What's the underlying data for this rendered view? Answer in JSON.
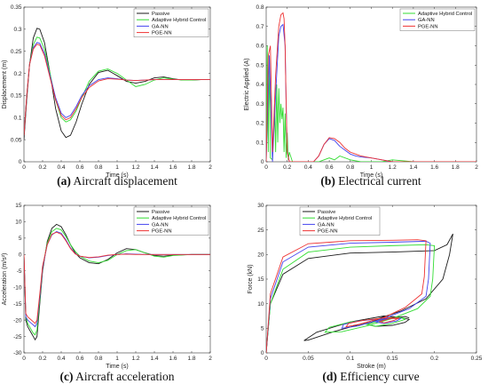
{
  "colors": {
    "Passive": "#1a1a1a",
    "Adaptive Hybrid Control": "#33dd33",
    "GA-NN": "#4444ee",
    "PGE-NN": "#ee3333"
  },
  "chart_data": [
    {
      "id": "a",
      "type": "line",
      "caption_label": "(a)",
      "caption_text": " Aircraft displacement",
      "xlabel": "Time (s)",
      "ylabel": "Displacement (m)",
      "xlim": [
        0,
        2
      ],
      "ylim": [
        0,
        0.35
      ],
      "xticks": [
        "0",
        "0.2",
        "0.4",
        "0.6",
        "0.8",
        "1",
        "1.2",
        "1.4",
        "1.6",
        "1.8",
        "2"
      ],
      "yticks": [
        "0",
        "0.05",
        "0.1",
        "0.15",
        "0.2",
        "0.25",
        "0.3",
        "0.35"
      ],
      "legend": "top-right",
      "series": [
        {
          "name": "Passive",
          "x": [
            0,
            0.03,
            0.06,
            0.1,
            0.14,
            0.17,
            0.22,
            0.28,
            0.34,
            0.4,
            0.45,
            0.5,
            0.56,
            0.62,
            0.7,
            0.8,
            0.9,
            1.0,
            1.1,
            1.2,
            1.3,
            1.4,
            1.5,
            1.6,
            1.7,
            1.8,
            1.9,
            2.0
          ],
          "y": [
            0.05,
            0.14,
            0.22,
            0.28,
            0.302,
            0.3,
            0.27,
            0.2,
            0.12,
            0.07,
            0.055,
            0.06,
            0.09,
            0.13,
            0.175,
            0.202,
            0.207,
            0.195,
            0.182,
            0.178,
            0.182,
            0.19,
            0.192,
            0.188,
            0.185,
            0.185,
            0.186,
            0.186
          ]
        },
        {
          "name": "Adaptive Hybrid Control",
          "x": [
            0,
            0.03,
            0.06,
            0.1,
            0.14,
            0.17,
            0.22,
            0.28,
            0.34,
            0.4,
            0.45,
            0.5,
            0.56,
            0.62,
            0.7,
            0.8,
            0.9,
            1.0,
            1.1,
            1.2,
            1.3,
            1.4,
            1.5,
            1.6,
            1.7,
            1.8,
            1.9,
            2.0
          ],
          "y": [
            0.06,
            0.15,
            0.22,
            0.265,
            0.282,
            0.28,
            0.255,
            0.2,
            0.14,
            0.1,
            0.09,
            0.095,
            0.115,
            0.145,
            0.182,
            0.205,
            0.21,
            0.2,
            0.185,
            0.17,
            0.175,
            0.185,
            0.19,
            0.187,
            0.185,
            0.185,
            0.186,
            0.186
          ]
        },
        {
          "name": "GA-NN",
          "x": [
            0,
            0.03,
            0.06,
            0.1,
            0.14,
            0.17,
            0.22,
            0.28,
            0.34,
            0.4,
            0.45,
            0.5,
            0.56,
            0.62,
            0.7,
            0.8,
            0.9,
            1.0,
            1.1,
            1.2,
            1.3,
            1.4,
            1.5,
            1.6,
            1.7,
            1.8,
            1.9,
            2.0
          ],
          "y": [
            0.06,
            0.15,
            0.22,
            0.258,
            0.27,
            0.268,
            0.245,
            0.195,
            0.145,
            0.11,
            0.1,
            0.105,
            0.125,
            0.15,
            0.172,
            0.186,
            0.19,
            0.188,
            0.185,
            0.184,
            0.185,
            0.186,
            0.186,
            0.186,
            0.186,
            0.186,
            0.186,
            0.186
          ]
        },
        {
          "name": "PGE-NN",
          "x": [
            0,
            0.03,
            0.06,
            0.1,
            0.14,
            0.17,
            0.22,
            0.28,
            0.34,
            0.4,
            0.45,
            0.5,
            0.56,
            0.62,
            0.7,
            0.8,
            0.9,
            1.0,
            1.1,
            1.2,
            1.3,
            1.4,
            1.5,
            1.6,
            1.7,
            1.8,
            1.9,
            2.0
          ],
          "y": [
            0.06,
            0.15,
            0.22,
            0.255,
            0.266,
            0.264,
            0.24,
            0.19,
            0.14,
            0.105,
            0.095,
            0.1,
            0.12,
            0.145,
            0.168,
            0.183,
            0.188,
            0.187,
            0.185,
            0.184,
            0.185,
            0.186,
            0.186,
            0.186,
            0.186,
            0.186,
            0.186,
            0.186
          ]
        }
      ]
    },
    {
      "id": "b",
      "type": "line",
      "caption_label": "(b)",
      "caption_text": " Electrical current",
      "xlabel": "Time (s)",
      "ylabel": "Electric Applied (A)",
      "xlim": [
        0,
        2
      ],
      "ylim": [
        0,
        0.8
      ],
      "xticks": [
        "0",
        "0.2",
        "0.4",
        "0.6",
        "0.8",
        "1",
        "1.2",
        "1.4",
        "1.6",
        "1.8",
        "2"
      ],
      "yticks": [
        "0",
        "0.1",
        "0.2",
        "0.3",
        "0.4",
        "0.5",
        "0.6",
        "0.7",
        "0.8"
      ],
      "legend": "top-right",
      "series": [
        {
          "name": "Adaptive Hybrid Control",
          "x": [
            0,
            0.01,
            0.02,
            0.03,
            0.04,
            0.06,
            0.08,
            0.09,
            0.1,
            0.11,
            0.12,
            0.13,
            0.14,
            0.15,
            0.16,
            0.17,
            0.18,
            0.19,
            0.2,
            0.21,
            0.22,
            0.25,
            0.3,
            0.4,
            0.5,
            0.55,
            0.6,
            0.65,
            0.7,
            0.8,
            0.9,
            1.0,
            1.1,
            1.2,
            1.4,
            1.6,
            1.8,
            2.0
          ],
          "y": [
            0.02,
            0.6,
            0.05,
            0.55,
            0.02,
            0.01,
            0.3,
            0.05,
            0.4,
            0.1,
            0.38,
            0.2,
            0.3,
            0.22,
            0.28,
            0.05,
            0.25,
            0.02,
            0.15,
            0.01,
            0.05,
            0.0,
            0.0,
            0.0,
            0.0,
            0.01,
            0.02,
            0.01,
            0.03,
            0.01,
            0.0,
            0.0,
            0.0,
            0.01,
            0.0,
            0.0,
            0.0,
            0.0
          ]
        },
        {
          "name": "GA-NN",
          "x": [
            0,
            0.03,
            0.06,
            0.09,
            0.12,
            0.14,
            0.16,
            0.18,
            0.19,
            0.2,
            0.22,
            0.3,
            0.45,
            0.5,
            0.55,
            0.6,
            0.65,
            0.7,
            0.75,
            0.8,
            0.85,
            0.9,
            1.0,
            1.1,
            1.2,
            1.4,
            1.6,
            1.8,
            2.0
          ],
          "y": [
            0,
            0.55,
            0.0,
            0.35,
            0.65,
            0.7,
            0.71,
            0.6,
            0.3,
            0.05,
            0.0,
            0.0,
            0.0,
            0.03,
            0.09,
            0.12,
            0.11,
            0.08,
            0.06,
            0.04,
            0.03,
            0.025,
            0.02,
            0.01,
            0.0,
            0.0,
            0.0,
            0.0,
            0.0
          ]
        },
        {
          "name": "PGE-NN",
          "x": [
            0,
            0.02,
            0.04,
            0.06,
            0.09,
            0.12,
            0.14,
            0.16,
            0.17,
            0.18,
            0.19,
            0.2,
            0.22,
            0.3,
            0.45,
            0.5,
            0.55,
            0.6,
            0.65,
            0.7,
            0.75,
            0.8,
            0.85,
            0.9,
            1.0,
            1.1,
            1.2,
            1.4,
            1.6,
            1.8,
            2.0
          ],
          "y": [
            0,
            0.55,
            0.6,
            0.05,
            0.45,
            0.7,
            0.76,
            0.77,
            0.74,
            0.6,
            0.3,
            0.05,
            0.0,
            0.0,
            0.0,
            0.03,
            0.09,
            0.125,
            0.12,
            0.1,
            0.07,
            0.05,
            0.04,
            0.03,
            0.02,
            0.01,
            0.0,
            0.0,
            0.0,
            0.0,
            0.0
          ]
        }
      ]
    },
    {
      "id": "c",
      "type": "line",
      "caption_label": "(c)",
      "caption_text": " Aircraft acceleration",
      "xlabel": "Time (s)",
      "ylabel": "Acceleration (m/s²)",
      "xlim": [
        0,
        2
      ],
      "ylim": [
        -30,
        15
      ],
      "xticks": [
        "0",
        "0.2",
        "0.4",
        "0.6",
        "0.8",
        "1",
        "1.2",
        "1.4",
        "1.6",
        "1.8",
        "2"
      ],
      "yticks": [
        "-30",
        "-25",
        "-20",
        "-15",
        "-10",
        "-5",
        "0",
        "5",
        "10",
        "15"
      ],
      "legend": "top-right",
      "series": [
        {
          "name": "Passive",
          "x": [
            0,
            0.02,
            0.04,
            0.06,
            0.08,
            0.1,
            0.12,
            0.14,
            0.17,
            0.2,
            0.25,
            0.3,
            0.35,
            0.4,
            0.45,
            0.5,
            0.55,
            0.6,
            0.7,
            0.8,
            0.9,
            1.0,
            1.1,
            1.2,
            1.3,
            1.4,
            1.5,
            1.6,
            1.8,
            2.0
          ],
          "y": [
            0,
            -20,
            -22,
            -23,
            -24,
            -25,
            -26,
            -25,
            -15,
            -5,
            4,
            8,
            9.2,
            8.5,
            6,
            3,
            0.5,
            -1,
            -2.5,
            -2.8,
            -1.5,
            0.5,
            1.8,
            1.5,
            0.5,
            -0.3,
            -0.5,
            -0.2,
            0,
            0
          ]
        },
        {
          "name": "Adaptive Hybrid Control",
          "x": [
            0,
            0.02,
            0.04,
            0.06,
            0.08,
            0.1,
            0.12,
            0.14,
            0.17,
            0.2,
            0.25,
            0.3,
            0.35,
            0.4,
            0.45,
            0.5,
            0.55,
            0.6,
            0.7,
            0.8,
            0.9,
            1.0,
            1.1,
            1.2,
            1.3,
            1.4,
            1.5,
            1.6,
            1.8,
            2.0
          ],
          "y": [
            0,
            -19,
            -21,
            -22,
            -23,
            -24,
            -24.5,
            -23,
            -14,
            -4,
            3.5,
            7,
            8,
            7.5,
            5.5,
            3,
            1,
            -0.5,
            -2,
            -2.5,
            -1.8,
            0,
            1.2,
            1.5,
            0.5,
            -0.5,
            -0.8,
            -0.3,
            0,
            0
          ]
        },
        {
          "name": "GA-NN",
          "x": [
            0,
            0.02,
            0.04,
            0.06,
            0.08,
            0.1,
            0.12,
            0.14,
            0.17,
            0.2,
            0.25,
            0.3,
            0.35,
            0.4,
            0.45,
            0.5,
            0.55,
            0.6,
            0.7,
            0.8,
            0.9,
            1.0,
            1.1,
            1.2,
            1.3,
            1.4,
            1.5,
            1.6,
            1.8,
            2.0
          ],
          "y": [
            0,
            -19,
            -20,
            -20.5,
            -21,
            -21.5,
            -22,
            -21,
            -13,
            -4,
            3,
            6,
            7,
            6.5,
            4.5,
            2,
            0.3,
            -0.5,
            -1,
            -0.8,
            -0.3,
            0,
            0.2,
            0.1,
            0,
            0,
            0,
            0,
            0,
            0
          ]
        },
        {
          "name": "PGE-NN",
          "x": [
            0,
            0.02,
            0.04,
            0.06,
            0.08,
            0.1,
            0.12,
            0.14,
            0.17,
            0.2,
            0.25,
            0.3,
            0.35,
            0.4,
            0.45,
            0.5,
            0.55,
            0.6,
            0.7,
            0.8,
            0.9,
            1.0,
            1.1,
            1.2,
            1.3,
            1.4,
            1.5,
            1.6,
            1.8,
            2.0
          ],
          "y": [
            0,
            -18,
            -19,
            -19.5,
            -20,
            -20.5,
            -21,
            -20,
            -12,
            -3.5,
            3,
            6.2,
            6.8,
            6.2,
            4.2,
            1.8,
            0.2,
            -0.5,
            -0.9,
            -0.7,
            -0.2,
            0,
            0.1,
            0,
            0,
            0,
            0,
            0,
            0,
            0
          ]
        }
      ]
    },
    {
      "id": "d",
      "type": "line",
      "caption_label": "(d)",
      "caption_text": " Efficiency curve",
      "xlabel": "Stroke (m)",
      "ylabel": "Force (kN)",
      "xlim": [
        0,
        0.25
      ],
      "ylim": [
        0,
        30
      ],
      "xticks": [
        "0",
        "0.05",
        "0.1",
        "0.15",
        "0.2",
        "0.25"
      ],
      "yticks": [
        "0",
        "5",
        "10",
        "15",
        "20",
        "25",
        "30"
      ],
      "legend": "top-left",
      "series": [
        {
          "name": "Passive",
          "x": [
            0,
            0.005,
            0.02,
            0.05,
            0.1,
            0.15,
            0.2,
            0.215,
            0.222,
            0.218,
            0.21,
            0.19,
            0.16,
            0.12,
            0.08,
            0.05,
            0.045,
            0.06,
            0.1,
            0.14,
            0.16,
            0.17,
            0.165,
            0.15,
            0.13,
            0.12,
            0.13,
            0.15,
            0.165,
            0.17
          ],
          "y": [
            0,
            10,
            16,
            19.2,
            20.3,
            20.5,
            20.8,
            22,
            24.2,
            20,
            15,
            11,
            8.5,
            6.2,
            4.3,
            2.6,
            2.5,
            4.2,
            6.3,
            7.5,
            7.2,
            6.8,
            6.2,
            5.6,
            5.4,
            5.8,
            6.6,
            7.2,
            7.4,
            7.1
          ]
        },
        {
          "name": "Adaptive Hybrid Control",
          "x": [
            0,
            0.005,
            0.02,
            0.05,
            0.1,
            0.15,
            0.19,
            0.2,
            0.198,
            0.195,
            0.18,
            0.15,
            0.12,
            0.09,
            0.07,
            0.075,
            0.1,
            0.14,
            0.16,
            0.165,
            0.15,
            0.13,
            0.12,
            0.14,
            0.16,
            0.165
          ],
          "y": [
            0,
            10,
            17,
            20.5,
            21.5,
            21.8,
            22,
            21.8,
            15,
            11.5,
            9,
            7,
            5.5,
            4.3,
            4.2,
            5.2,
            6.3,
            7.1,
            7.2,
            6.8,
            6,
            5.4,
            5.8,
            6.8,
            7.2,
            7
          ]
        },
        {
          "name": "GA-NN",
          "x": [
            0,
            0.005,
            0.02,
            0.05,
            0.1,
            0.15,
            0.19,
            0.195,
            0.193,
            0.19,
            0.17,
            0.14,
            0.11,
            0.09,
            0.092,
            0.11,
            0.14,
            0.16,
            0.155,
            0.14,
            0.13,
            0.145,
            0.16
          ],
          "y": [
            0,
            11,
            18.5,
            21.5,
            22.3,
            22.5,
            22.7,
            22.3,
            15,
            11.5,
            9,
            7,
            5.5,
            5,
            5.8,
            6.5,
            7,
            7,
            6.5,
            6,
            6.3,
            7,
            7
          ]
        },
        {
          "name": "PGE-NN",
          "x": [
            0,
            0.005,
            0.02,
            0.05,
            0.1,
            0.15,
            0.18,
            0.19,
            0.188,
            0.185,
            0.165,
            0.14,
            0.11,
            0.095,
            0.098,
            0.115,
            0.14,
            0.158,
            0.152,
            0.14,
            0.135,
            0.148,
            0.158
          ],
          "y": [
            0,
            12,
            19.5,
            22.2,
            22.8,
            22.9,
            23,
            22.8,
            15.5,
            12,
            9.2,
            7.2,
            5.8,
            5.3,
            6,
            6.6,
            7.1,
            7.1,
            6.6,
            6.1,
            6.4,
            7,
            7
          ]
        }
      ]
    }
  ]
}
